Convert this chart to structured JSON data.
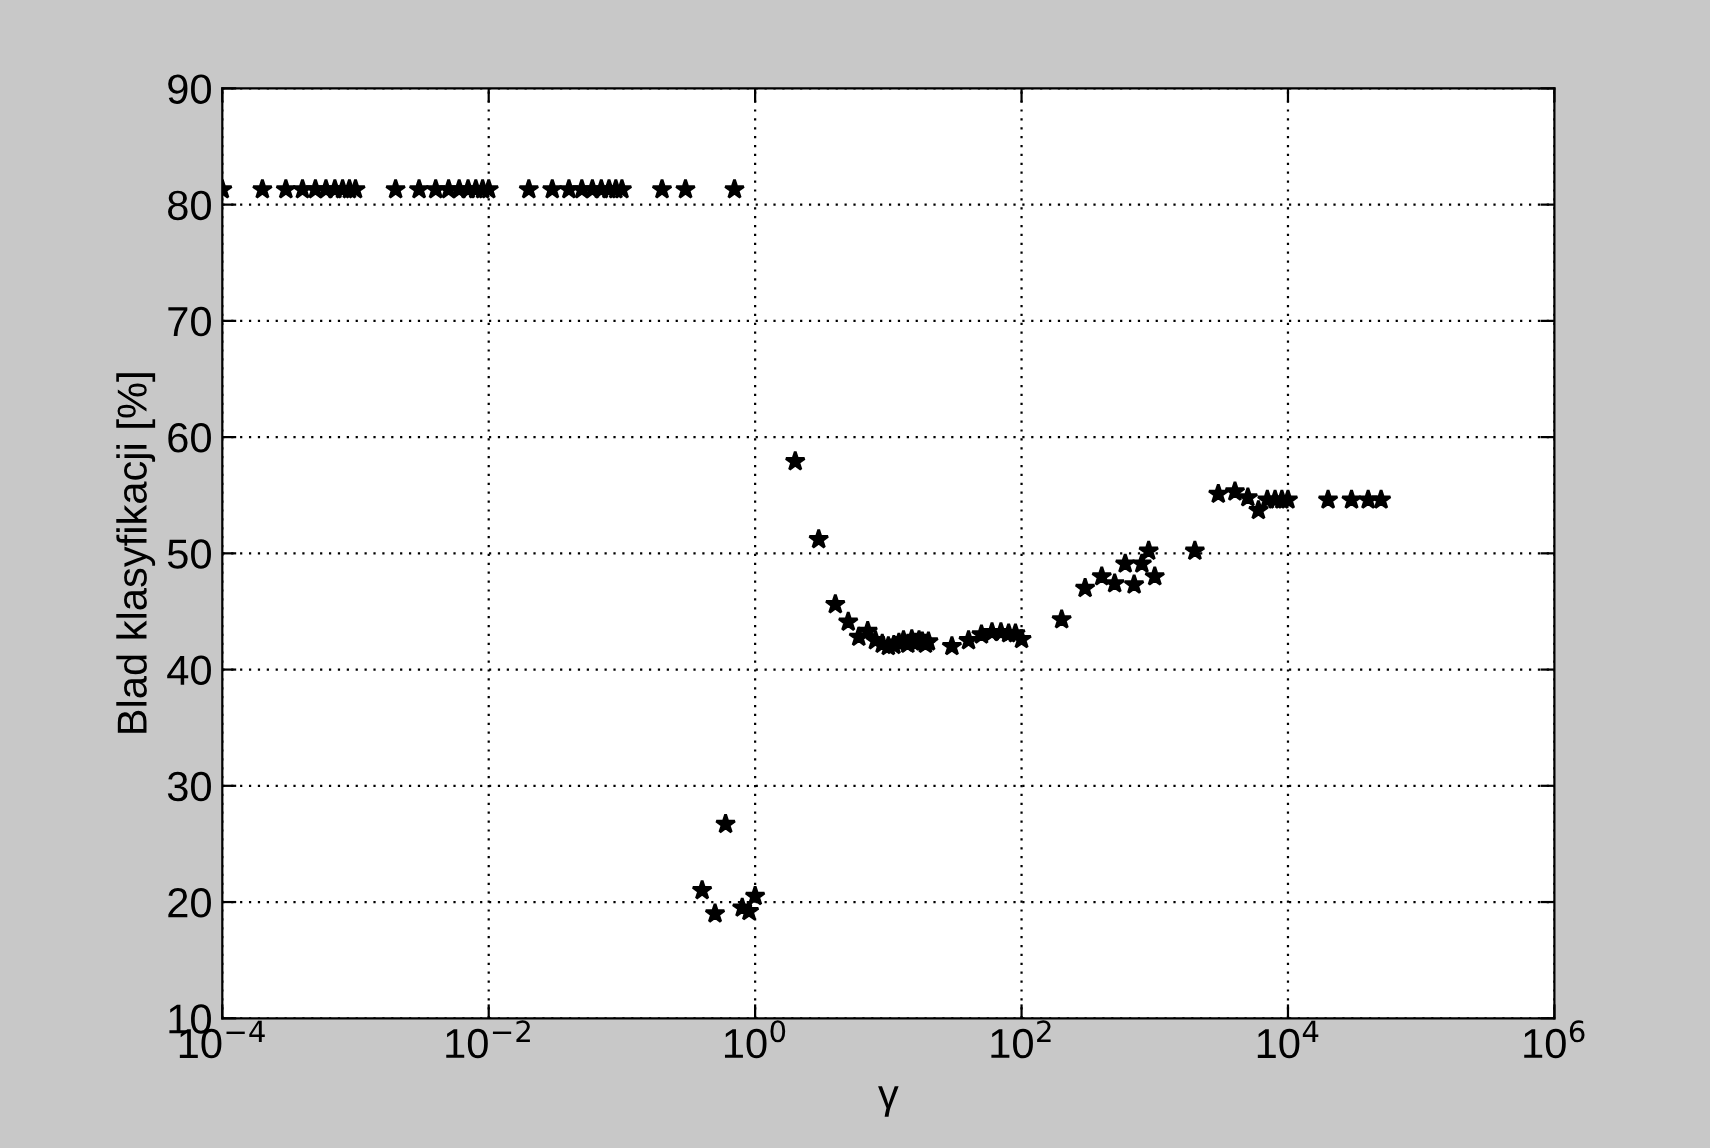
{
  "chart_data": {
    "type": "scatter",
    "xlabel": "γ",
    "ylabel": "Blad klasyfikacji [%]",
    "log": "x",
    "xlim": [
      0.0001,
      1000000
    ],
    "ylim": [
      10,
      90
    ],
    "xticks": [
      {
        "value": 0.0001,
        "label": "10$^{−4}$"
      },
      {
        "value": 0.01,
        "label": "10$^{−2}$"
      },
      {
        "value": 1,
        "label": "10$^{0}$"
      },
      {
        "value": 100,
        "label": "10$^{2}$"
      },
      {
        "value": 10000,
        "label": "10$^{4}$"
      },
      {
        "value": 1000000,
        "label": "10$^{6}$"
      }
    ],
    "yticks": [
      10,
      20,
      30,
      40,
      50,
      60,
      70,
      80,
      90
    ],
    "grid": true,
    "marker": "star",
    "series": [
      {
        "color": "#000000",
        "x": [
          0.0001,
          0.0002,
          0.0003,
          0.0004,
          0.0005,
          0.0006,
          0.0007,
          0.0008,
          0.0009,
          0.001,
          0.002,
          0.003,
          0.004,
          0.005,
          0.006,
          0.007,
          0.008,
          0.009,
          0.01,
          0.02,
          0.03,
          0.04,
          0.05,
          0.06,
          0.07,
          0.08,
          0.09,
          0.1,
          0.2,
          0.3,
          0.4,
          0.5,
          0.6,
          0.7,
          0.8,
          0.9,
          1,
          2,
          3,
          4,
          5,
          6,
          7,
          8,
          9,
          10,
          11,
          12,
          13,
          14,
          15,
          16,
          17,
          18,
          19,
          20,
          30,
          40,
          50,
          60,
          70,
          80,
          90,
          100,
          200,
          300,
          400,
          500,
          600,
          700,
          800,
          900,
          1000,
          2000,
          3000,
          4000,
          5000,
          6000,
          7000,
          8000,
          9000,
          10000,
          20000,
          30000,
          40000,
          50000
        ],
        "values": [
          81.3,
          81.3,
          81.3,
          81.3,
          81.3,
          81.3,
          81.3,
          81.3,
          81.3,
          81.3,
          81.3,
          81.3,
          81.3,
          81.3,
          81.3,
          81.3,
          81.3,
          81.3,
          81.3,
          81.3,
          81.3,
          81.3,
          81.3,
          81.3,
          81.3,
          81.3,
          81.3,
          81.3,
          81.3,
          81.3,
          21,
          19,
          26.7,
          81.3,
          19.5,
          19.2,
          20.5,
          57.9,
          51.2,
          45.6,
          44.1,
          42.8,
          43.3,
          42.5,
          42.2,
          42.0,
          42.1,
          42.3,
          42.5,
          42.2,
          42.6,
          42.3,
          42.5,
          42.4,
          42.2,
          42.4,
          42.0,
          42.5,
          43.0,
          43.2,
          43.2,
          43.1,
          43.1,
          42.6,
          44.3,
          47.0,
          48.0,
          47.4,
          49.1,
          47.3,
          49.1,
          50.2,
          48.0,
          50.2,
          55.1,
          55.3,
          54.8,
          53.7,
          54.6,
          54.6,
          54.6,
          54.6,
          54.6,
          54.6,
          54.6,
          54.6
        ]
      }
    ]
  }
}
